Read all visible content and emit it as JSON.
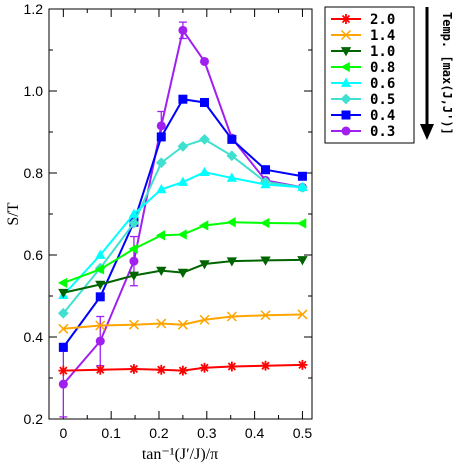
{
  "chart_data": {
    "type": "line",
    "xlabel": "tan⁻¹(J′/J)/π",
    "ylabel": "S/T",
    "xlim": [
      -0.03,
      0.52
    ],
    "ylim": [
      0.2,
      1.2
    ],
    "xticks": [
      "0",
      "0.1",
      "0.2",
      "0.3",
      "0.4",
      "0.5"
    ],
    "yticks": [
      "0.2",
      "0.4",
      "0.6",
      "0.8",
      "1.0",
      "1.2"
    ],
    "grid": false,
    "legend_position": "top-right (outside plot)",
    "side_annotation": "Temp. [max(J,J')]",
    "x": [
      0.0,
      0.0772,
      0.1476,
      0.2048,
      0.25,
      0.2952,
      0.3524,
      0.4228,
      0.5
    ],
    "series": [
      {
        "name": "2.0",
        "color": "#ff0000",
        "marker": "star",
        "values": [
          0.318,
          0.32,
          0.322,
          0.32,
          0.318,
          0.325,
          0.328,
          0.33,
          0.332
        ]
      },
      {
        "name": "1.4",
        "color": "#ffa500",
        "marker": "x",
        "values": [
          0.42,
          0.428,
          0.43,
          0.433,
          0.43,
          0.442,
          0.45,
          0.453,
          0.455
        ]
      },
      {
        "name": "1.0",
        "color": "#006400",
        "marker": "triangle-down",
        "values": [
          0.508,
          0.528,
          0.55,
          0.562,
          0.557,
          0.578,
          0.585,
          0.587,
          0.588
        ]
      },
      {
        "name": "0.8",
        "color": "#00ff00",
        "marker": "triangle-left",
        "values": [
          0.532,
          0.565,
          0.615,
          0.648,
          0.65,
          0.672,
          0.68,
          0.678,
          0.677
        ]
      },
      {
        "name": "0.6",
        "color": "#00ffff",
        "marker": "triangle-up",
        "values": [
          0.502,
          0.6,
          0.7,
          0.76,
          0.778,
          0.802,
          0.788,
          0.772,
          0.765
        ]
      },
      {
        "name": "0.5",
        "color": "#40e0d0",
        "marker": "diamond",
        "values": [
          0.458,
          0.568,
          0.678,
          0.825,
          0.865,
          0.882,
          0.842,
          0.778,
          0.765
        ]
      },
      {
        "name": "0.4",
        "color": "#0000ff",
        "marker": "square",
        "values": [
          0.375,
          0.498,
          0.68,
          0.888,
          0.98,
          0.972,
          0.882,
          0.808,
          0.792
        ]
      },
      {
        "name": "0.3",
        "color": "#a020f0",
        "marker": "circle",
        "values": [
          0.285,
          0.39,
          0.585,
          0.915,
          1.148,
          1.072,
          0.885,
          0.782,
          0.765
        ],
        "errors": [
          0.08,
          0.06,
          0.06,
          0.035,
          0.02,
          0.0,
          0.0,
          0.0,
          0.0
        ]
      }
    ]
  }
}
